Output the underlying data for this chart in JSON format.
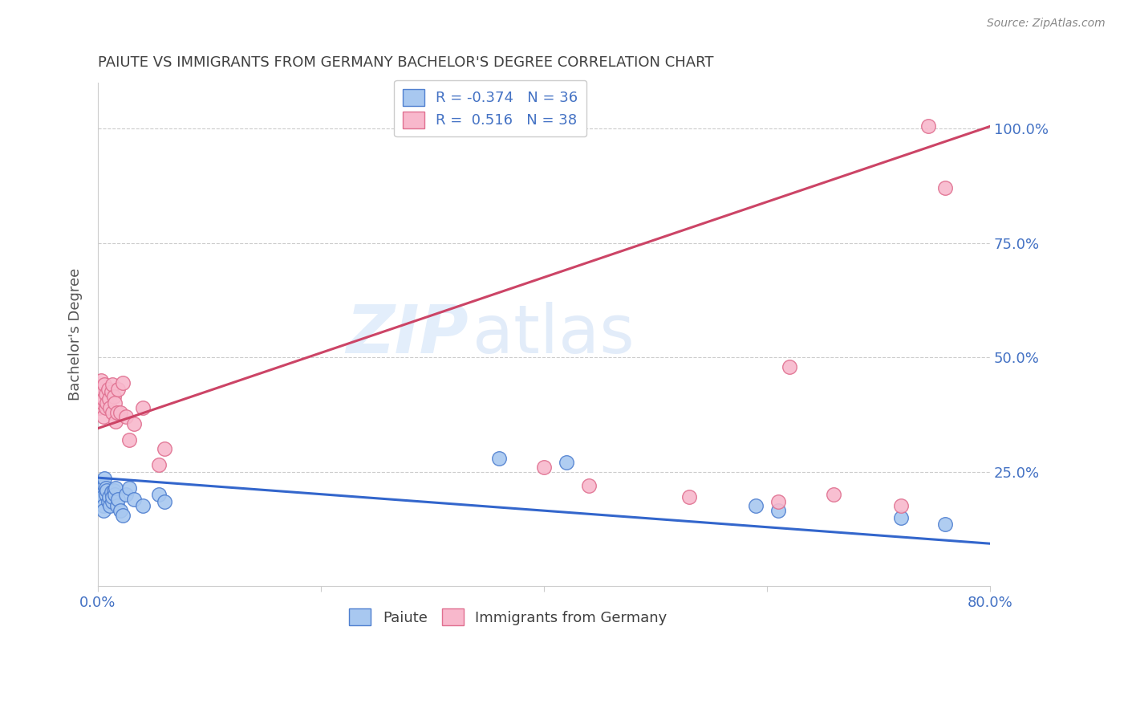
{
  "title": "PAIUTE VS IMMIGRANTS FROM GERMANY BACHELOR'S DEGREE CORRELATION CHART",
  "source": "Source: ZipAtlas.com",
  "ylabel": "Bachelor's Degree",
  "xlim": [
    0.0,
    0.8
  ],
  "ylim": [
    0.0,
    1.1
  ],
  "yticks": [
    0.0,
    0.25,
    0.5,
    0.75,
    1.0
  ],
  "ytick_labels": [
    "",
    "25.0%",
    "50.0%",
    "75.0%",
    "100.0%"
  ],
  "xticks": [
    0.0,
    0.2,
    0.4,
    0.6,
    0.8
  ],
  "xtick_labels": [
    "0.0%",
    "",
    "",
    "",
    "80.0%"
  ],
  "paiute_R": -0.374,
  "paiute_N": 36,
  "germany_R": 0.516,
  "germany_N": 38,
  "paiute_color": "#A8C8F0",
  "germany_color": "#F8B8CC",
  "paiute_edge_color": "#5080D0",
  "germany_edge_color": "#E07090",
  "paiute_line_color": "#3366CC",
  "germany_line_color": "#CC4466",
  "legend_label_paiute": "Paiute",
  "legend_label_germany": "Immigrants from Germany",
  "title_color": "#404040",
  "tick_label_color": "#4472C4",
  "watermark_zip": "ZIP",
  "watermark_atlas": "atlas",
  "paiute_x": [
    0.001,
    0.002,
    0.003,
    0.004,
    0.005,
    0.005,
    0.006,
    0.006,
    0.007,
    0.007,
    0.008,
    0.009,
    0.01,
    0.011,
    0.012,
    0.013,
    0.013,
    0.014,
    0.015,
    0.016,
    0.017,
    0.018,
    0.02,
    0.022,
    0.025,
    0.028,
    0.032,
    0.04,
    0.055,
    0.06,
    0.36,
    0.42,
    0.59,
    0.61,
    0.72,
    0.76
  ],
  "paiute_y": [
    0.22,
    0.2,
    0.215,
    0.195,
    0.175,
    0.165,
    0.22,
    0.235,
    0.2,
    0.215,
    0.21,
    0.185,
    0.195,
    0.175,
    0.205,
    0.185,
    0.195,
    0.21,
    0.2,
    0.215,
    0.175,
    0.19,
    0.165,
    0.155,
    0.2,
    0.215,
    0.19,
    0.175,
    0.2,
    0.185,
    0.28,
    0.27,
    0.175,
    0.165,
    0.15,
    0.135
  ],
  "germany_x": [
    0.001,
    0.002,
    0.003,
    0.004,
    0.005,
    0.005,
    0.006,
    0.007,
    0.007,
    0.008,
    0.009,
    0.01,
    0.011,
    0.012,
    0.013,
    0.013,
    0.014,
    0.015,
    0.016,
    0.017,
    0.018,
    0.02,
    0.022,
    0.025,
    0.028,
    0.032,
    0.04,
    0.055,
    0.06,
    0.4,
    0.44,
    0.53,
    0.61,
    0.62,
    0.66,
    0.72,
    0.745,
    0.76
  ],
  "germany_y": [
    0.39,
    0.43,
    0.45,
    0.4,
    0.37,
    0.41,
    0.44,
    0.39,
    0.42,
    0.4,
    0.43,
    0.41,
    0.39,
    0.425,
    0.38,
    0.44,
    0.415,
    0.4,
    0.36,
    0.38,
    0.43,
    0.38,
    0.445,
    0.37,
    0.32,
    0.355,
    0.39,
    0.265,
    0.3,
    0.26,
    0.22,
    0.195,
    0.185,
    0.48,
    0.2,
    0.175,
    1.005,
    0.87
  ],
  "paiute_trend_x0": 0.0,
  "paiute_trend_y0": 0.237,
  "paiute_trend_x1": 0.8,
  "paiute_trend_y1": 0.093,
  "germany_trend_x0": 0.0,
  "germany_trend_y0": 0.345,
  "germany_trend_x1": 0.8,
  "germany_trend_y1": 1.005
}
